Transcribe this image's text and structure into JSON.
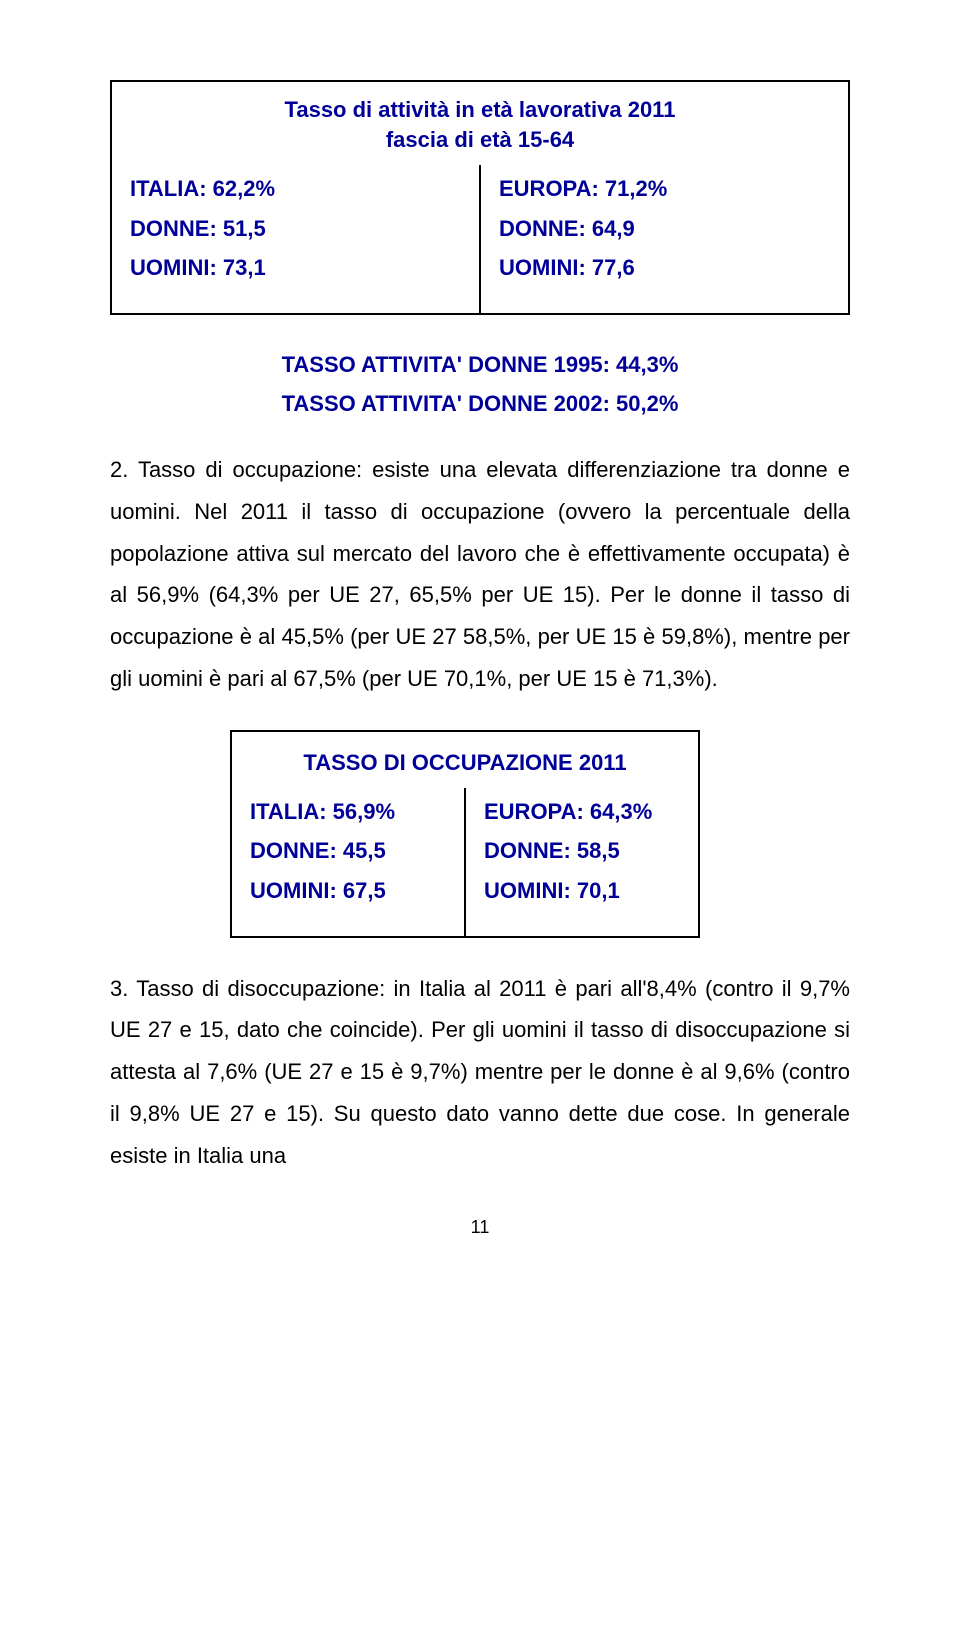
{
  "box1": {
    "title": "Tasso di attività in età lavorativa 2011",
    "subtitle": "fascia di età 15-64",
    "left1": "ITALIA: 62,2%",
    "left2": "DONNE: 51,5",
    "left3": "UOMINI: 73,1",
    "right1": "EUROPA: 71,2%",
    "right2": "DONNE: 64,9",
    "right3": "UOMINI: 77,6"
  },
  "stat": {
    "line1": "TASSO ATTIVITA' DONNE 1995: 44,3%",
    "line2": "TASSO ATTIVITA' DONNE 2002: 50,2%"
  },
  "para2": "2. Tasso di occupazione: esiste una elevata differenziazione tra donne e uomini. Nel 2011 il tasso di occupazione (ovvero la percentuale della popolazione attiva sul mercato del lavoro che è effettivamente occupata) è al 56,9% (64,3% per UE 27, 65,5% per UE 15). Per le donne il tasso di occupazione è al 45,5% (per UE 27 58,5%, per UE 15 è 59,8%), mentre per gli uomini è pari al 67,5% (per UE 70,1%, per UE 15 è 71,3%).",
  "box2": {
    "title": "TASSO DI OCCUPAZIONE 2011",
    "left1": "ITALIA: 56,9%",
    "left2": "DONNE: 45,5",
    "left3": "UOMINI: 67,5",
    "right1": "EUROPA: 64,3%",
    "right2": "DONNE: 58,5",
    "right3": "UOMINI: 70,1"
  },
  "para3": "3. Tasso di disoccupazione: in Italia al 2011 è pari all'8,4% (contro il 9,7% UE 27 e 15, dato che coincide). Per gli uomini il tasso di disoccupazione si attesta al 7,6% (UE 27 e 15 è 9,7%) mentre per le donne è al 9,6% (contro il 9,8% UE 27 e 15). Su questo dato vanno dette due cose. In generale esiste in Italia una",
  "pagenum": "11",
  "colors": {
    "accent": "#000099",
    "text": "#000000",
    "bg": "#ffffff",
    "border": "#000000"
  }
}
